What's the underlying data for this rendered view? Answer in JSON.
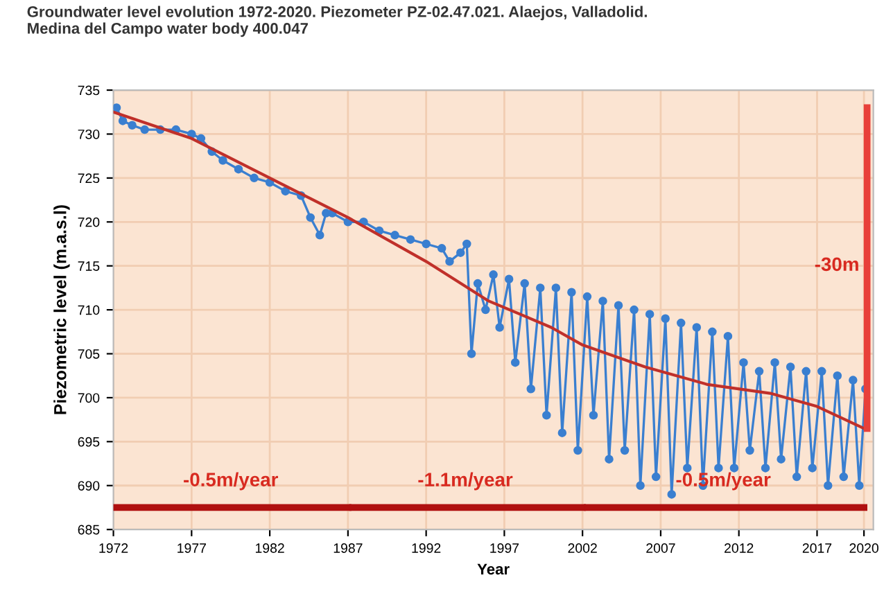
{
  "chart_data": {
    "type": "line",
    "title": "Groundwater level evolution 1972-2020. Piezometer PZ-02.47.021. Alaejos, Valladolid.\nMedina del Campo water body 400.047",
    "xlabel": "Year",
    "ylabel": "Piezometric level (m.a.s.l)",
    "series": [
      {
        "color": "#3a7fd0",
        "marker": "circle",
        "x": [
          1972.2,
          1972.6,
          1973.2,
          1974,
          1975,
          1976,
          1977,
          1977.6,
          1978.3,
          1979,
          1980,
          1981,
          1982,
          1983,
          1984,
          1984.6,
          1985.2,
          1985.6,
          1986,
          1987,
          1988,
          1989,
          1990,
          1991,
          1992,
          1993,
          1993.5,
          1994.2,
          1994.6,
          1994.9,
          1995.3,
          1995.8,
          1996.3,
          1996.7,
          1997.3,
          1997.7,
          1998.3,
          1998.7,
          1999.3,
          1999.7,
          2000.3,
          2000.7,
          2001.3,
          2001.7,
          2002.3,
          2002.7,
          2003.3,
          2003.7,
          2004.3,
          2004.7,
          2005.3,
          2005.7,
          2006.3,
          2006.7,
          2007.3,
          2007.7,
          2008.3,
          2008.7,
          2009.3,
          2009.7,
          2010.3,
          2010.7,
          2011.3,
          2011.7,
          2012.3,
          2012.7,
          2013.3,
          2013.7,
          2014.3,
          2014.7,
          2015.3,
          2015.7,
          2016.3,
          2016.7,
          2017.3,
          2017.7,
          2018.3,
          2018.7,
          2019.3,
          2019.7,
          2020.1
        ],
        "values": [
          733,
          731.5,
          731,
          730.5,
          730.5,
          730.5,
          730,
          729.5,
          728,
          727,
          726,
          725,
          724.5,
          723.5,
          723,
          720.5,
          718.5,
          721,
          721,
          720,
          720,
          719,
          718.5,
          718,
          717.5,
          717,
          715.5,
          716.5,
          717.5,
          705,
          713,
          710,
          714,
          708,
          713.5,
          704,
          713,
          701,
          712.5,
          698,
          712.5,
          696,
          712,
          694,
          711.5,
          698,
          711,
          693,
          710.5,
          694,
          710,
          690,
          709.5,
          691,
          709,
          689,
          708.5,
          692,
          708,
          690,
          707.5,
          692,
          707,
          692,
          704,
          694,
          703,
          692,
          704,
          693,
          703.5,
          691,
          703,
          692,
          703,
          690,
          702.5,
          691,
          702,
          690,
          701
        ]
      },
      {
        "color": "#c0302a",
        "marker": "none",
        "x": [
          1972,
          1977,
          1982,
          1987,
          1992,
          1996,
          2000,
          2002,
          2006,
          2010,
          2014,
          2017,
          2020
        ],
        "values": [
          732.5,
          729.5,
          725,
          720.5,
          715.5,
          711,
          708,
          706,
          703.5,
          701.5,
          700.5,
          699,
          696.5
        ]
      },
      {
        "color": "#b01010",
        "marker": "none",
        "x": [
          1972,
          1987
        ],
        "values": [
          687.5,
          687.5
        ]
      },
      {
        "color": "#b01010",
        "marker": "none",
        "x": [
          1987.3,
          2002
        ],
        "values": [
          687.5,
          687.5
        ]
      },
      {
        "color": "#b01010",
        "marker": "none",
        "x": [
          2002.3,
          2020
        ],
        "values": [
          687.5,
          687.5
        ]
      },
      {
        "color": "#e8403a",
        "marker": "none",
        "x": [
          2020.2,
          2020.2
        ],
        "values": [
          733,
          696.5
        ]
      }
    ],
    "annotations": [
      {
        "text": "-0.5m/year",
        "x": 1979.5,
        "y": 687.5
      },
      {
        "text": "-1.1m/year",
        "x": 1994.5,
        "y": 687.5
      },
      {
        "text": "-0.5m/year",
        "x": 2011,
        "y": 687.5
      },
      {
        "text": "-30m",
        "x": 2020.2,
        "y": 715
      }
    ],
    "xlim": [
      1972,
      2020.6
    ],
    "ylim": [
      685,
      735
    ],
    "xticks": [
      1972,
      1977,
      1982,
      1987,
      1992,
      1997,
      2002,
      2007,
      2012,
      2017,
      2020
    ],
    "yticks": [
      685,
      690,
      695,
      700,
      705,
      710,
      715,
      720,
      725,
      730,
      735
    ],
    "grid": true
  }
}
